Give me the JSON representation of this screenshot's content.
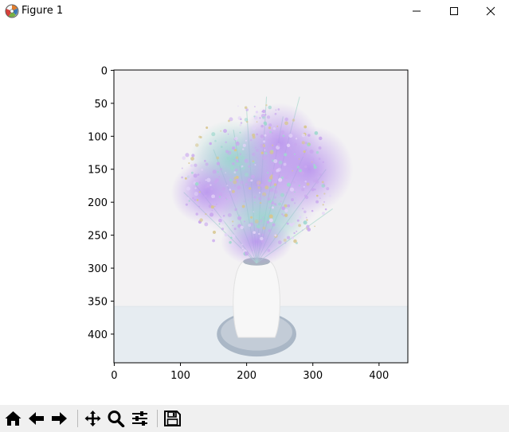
{
  "window": {
    "title": "Figure 1"
  },
  "toolbar": {
    "buttons": [
      "home-icon",
      "back-arrow-icon",
      "forward-arrow-icon",
      "pan-icon",
      "zoom-icon",
      "configure-subplots-icon",
      "save-icon"
    ]
  },
  "chart_data": {
    "type": "image",
    "image_shape": [
      444,
      444
    ],
    "x_ticks": [
      "0",
      "100",
      "200",
      "300",
      "400"
    ],
    "y_ticks": [
      "0",
      "50",
      "100",
      "150",
      "200",
      "250",
      "300",
      "350",
      "400"
    ],
    "xlim": [
      -0.5,
      443.5
    ],
    "ylim": [
      443.5,
      -0.5
    ],
    "colors": {
      "background": "#f3f2f3",
      "table": "#e6ecf1",
      "vase": "#f7f7f7",
      "tray": "#aab7c6",
      "flowers_purple": "#c9a8ee",
      "flowers_teal": "#9fd8cf",
      "flowers_gold": "#d7c68e"
    }
  }
}
